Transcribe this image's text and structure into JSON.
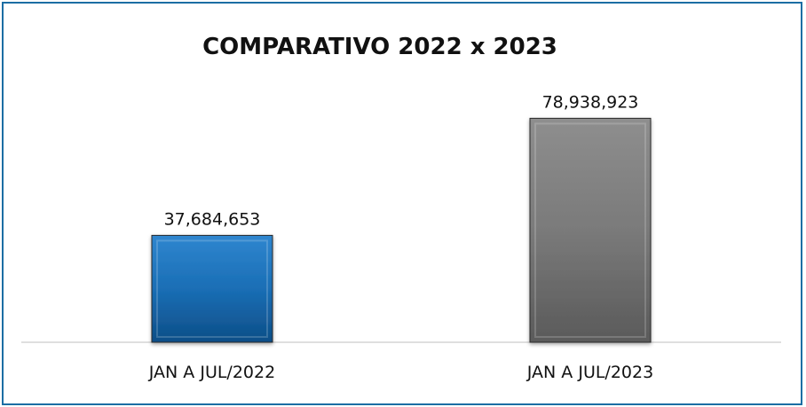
{
  "chart_data": {
    "type": "bar",
    "title": "COMPARATIVO 2022 x 2023",
    "categories": [
      "JAN A JUL/2022",
      "JAN A JUL/2023"
    ],
    "values": [
      37684653,
      78938923
    ],
    "value_labels": [
      "37,684,653",
      "78,938,923"
    ],
    "colors": [
      "#1a6eb5",
      "#7b7b7b"
    ],
    "xlabel": "",
    "ylabel": "",
    "ylim": [
      0,
      100000000
    ],
    "grid": false,
    "legend": "none"
  }
}
